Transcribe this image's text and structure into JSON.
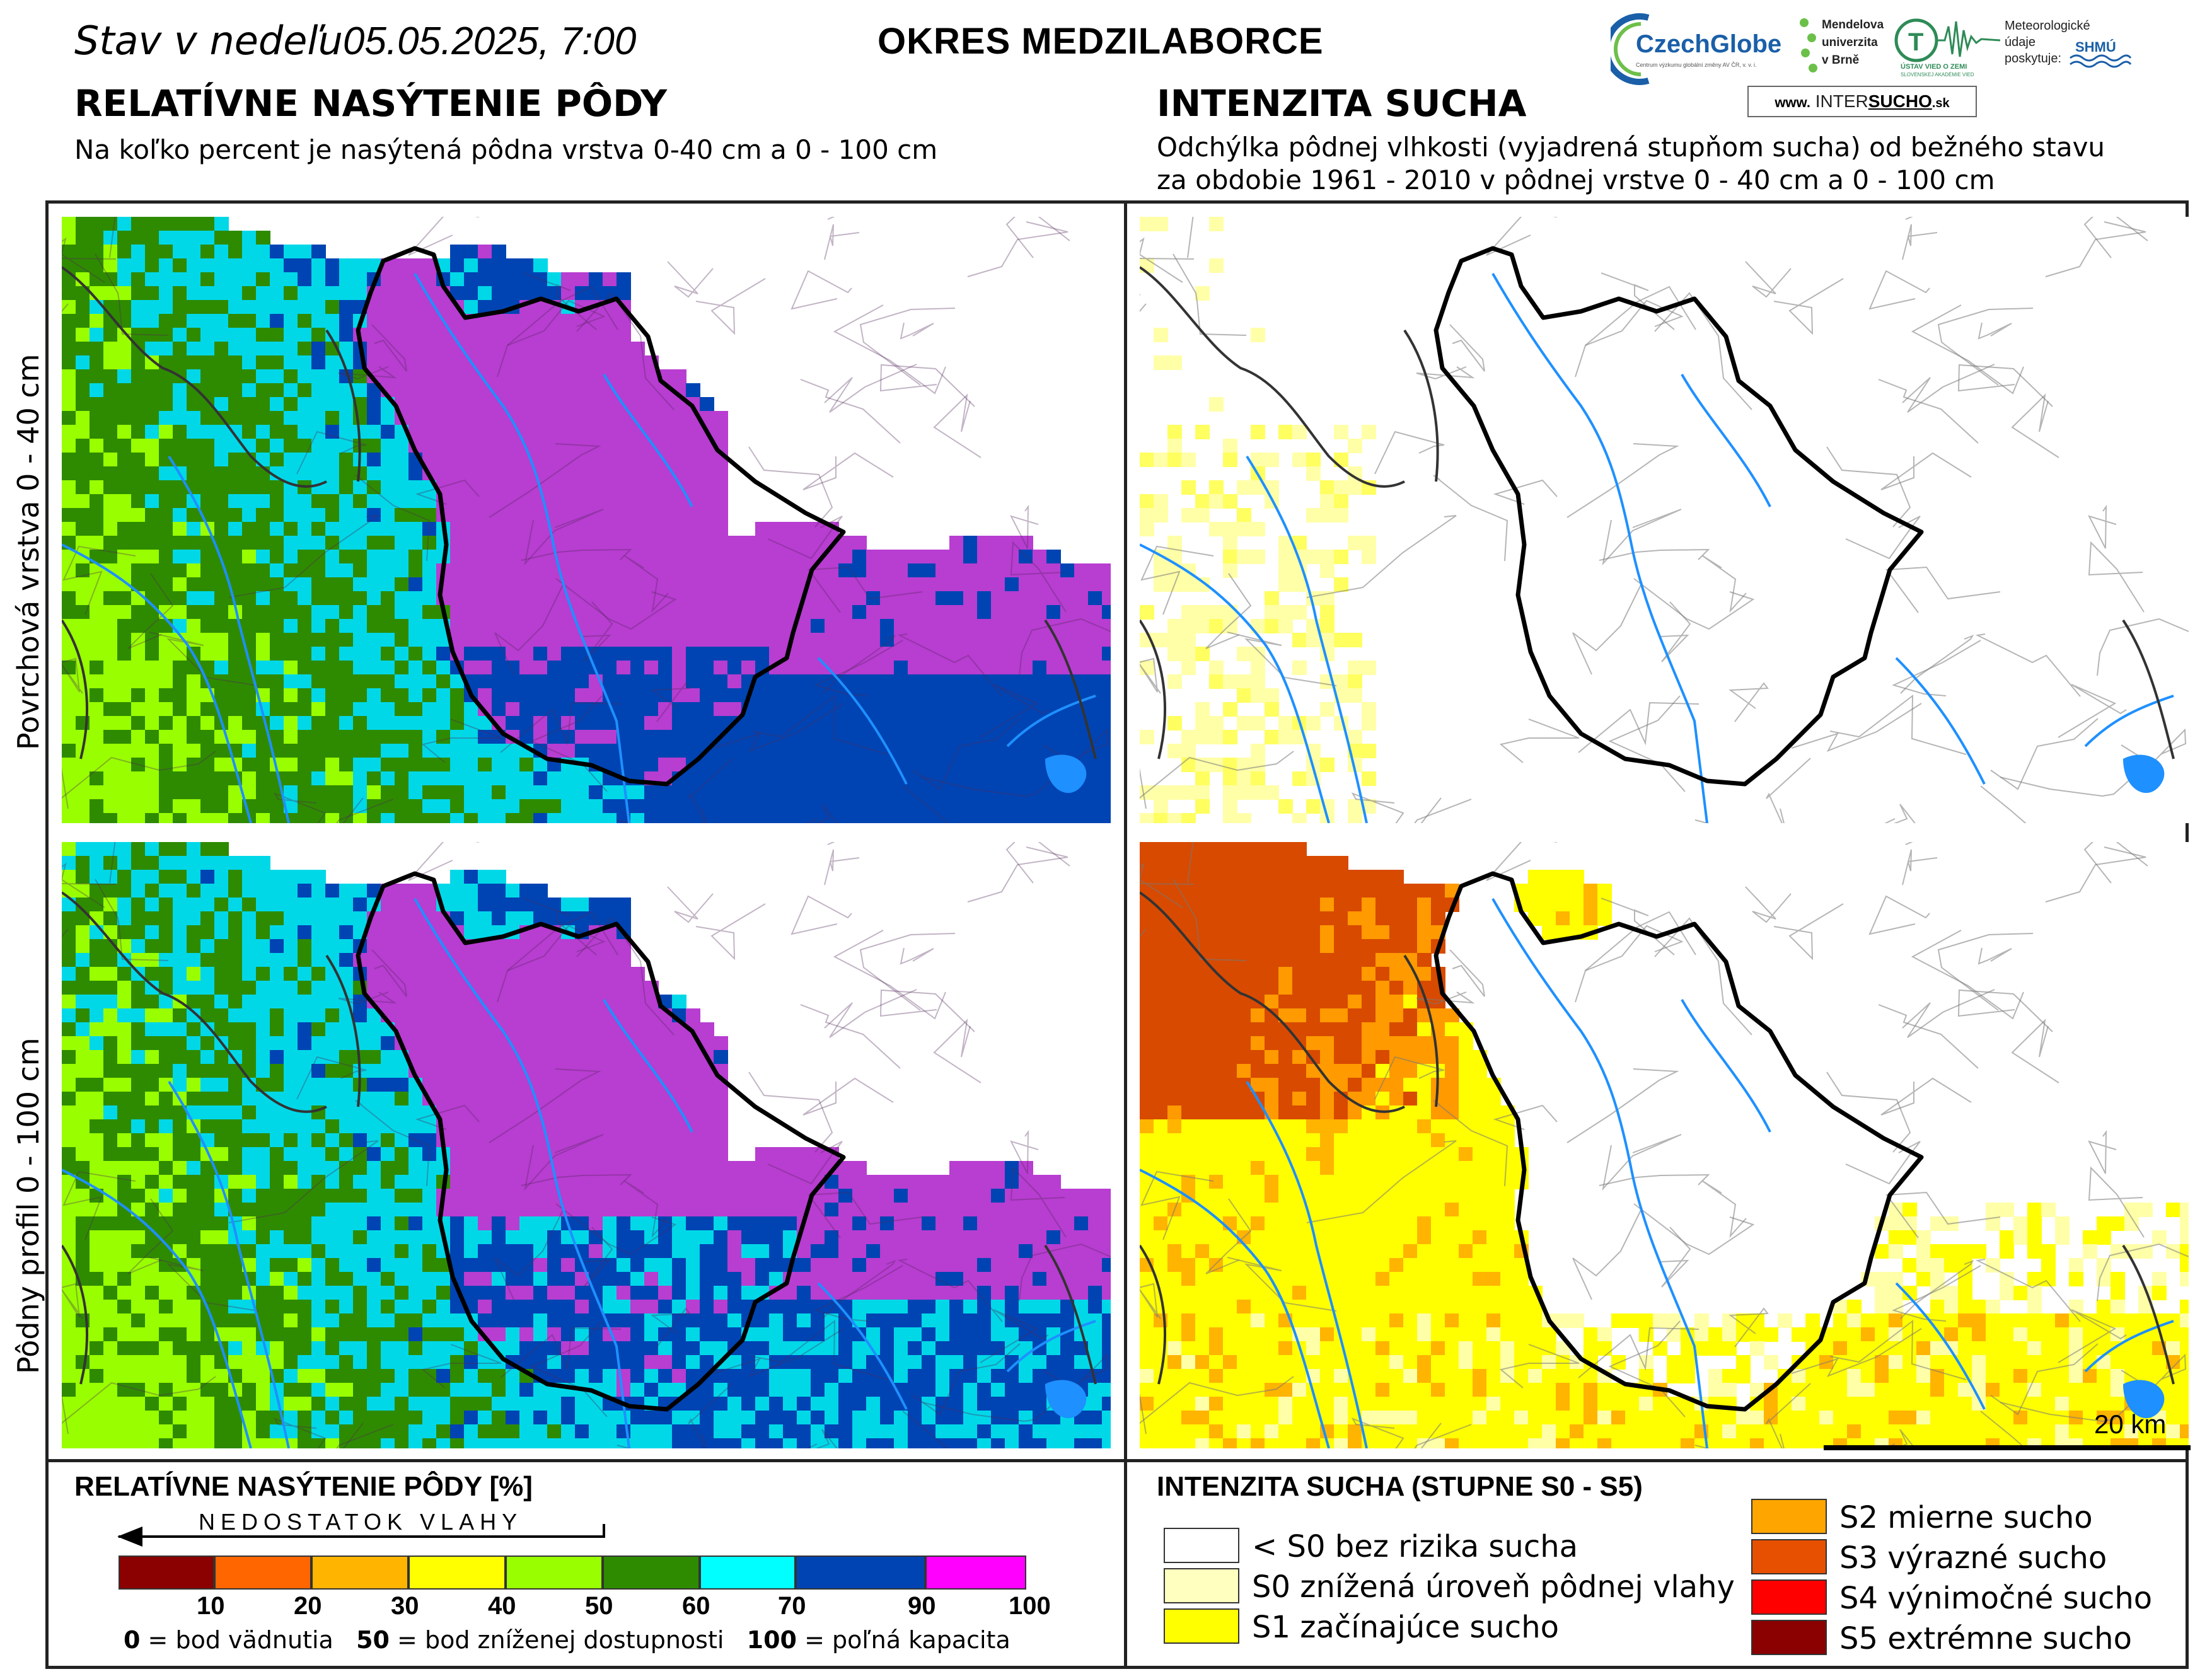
{
  "header": {
    "status_prefix": "Stav v nedeľu",
    "status_date": "05.05.2025, 7:00",
    "district": "OKRES  MEDZILABORCE"
  },
  "left_section": {
    "title": "RELATÍVNE NASÝTENIE PÔDY",
    "subtitle": "Na koľko percent je nasýtená pôdna vrstva 0-40 cm a 0 - 100 cm"
  },
  "right_section": {
    "title": "INTENZITA SUCHA",
    "subtitle_line1": "Odchýlka pôdnej vlhkosti (vyjadrená stupňom sucha) od bežného stavu",
    "subtitle_line2": "za obdobie 1961 - 2010 v pôdnej vrstve 0 - 40 cm a 0 - 100 cm"
  },
  "row_labels": {
    "top": "Povrchová vrstva 0 - 40 cm",
    "bottom": "Pôdny profil 0 - 100 cm"
  },
  "scale_bar": {
    "label": "20 km"
  },
  "logos": {
    "czechglobe": "CzechGlobe",
    "czechglobe_sub": "Centrum výzkumu globální změny AV ČR, v. v. i.",
    "mendel_line1": "Mendelova",
    "mendel_line2": "univerzita",
    "mendel_line3": "v Brně",
    "uvz": "ÚSTAV VIED O ZEMI",
    "uvz_sub": "SLOVENSKEJ AKADÉMIE VIED",
    "meteo_line1": "Meteorologické",
    "meteo_line2": "údaje",
    "meteo_line3": "poskytuje:",
    "shmu": "SHMÚ",
    "intersucho_prefix": "www.",
    "intersucho_a": "INTER",
    "intersucho_b": "SUCHO",
    "intersucho_suffix": ".sk"
  },
  "legend_saturation": {
    "title": "RELATÍVNE NASÝTENIE PÔDY [%]",
    "arrow_label": "NEDOSTATOK VLAHY",
    "ticks": [
      "10",
      "20",
      "30",
      "40",
      "50",
      "60",
      "70",
      "90",
      "100"
    ],
    "colors": [
      "#8b0000",
      "#ff6600",
      "#ffb400",
      "#ffff00",
      "#99ff00",
      "#2e8b00",
      "#00ffff",
      "#0044b3",
      "#ff00ff"
    ],
    "note_0_num": "0",
    "note_0_text": " = bod vädnutia",
    "note_50_num": "50",
    "note_50_text": " = bod zníženej dostupnosti",
    "note_100_num": "100",
    "note_100_text": " = poľná kapacita"
  },
  "legend_drought": {
    "title": "INTENZITA SUCHA (STUPNE S0 - S5)",
    "items": [
      {
        "label": "< S0 bez rizika sucha",
        "color": "#ffffff"
      },
      {
        "label": "S0 znížená úroveň pôdnej vlahy",
        "color": "#ffffc0"
      },
      {
        "label": "S1 začínajúce sucho",
        "color": "#ffff00"
      },
      {
        "label": "S2 mierne sucho",
        "color": "#ffa500"
      },
      {
        "label": "S3 výrazné sucho",
        "color": "#e65000"
      },
      {
        "label": "S4 výnimočné sucho",
        "color": "#ff0000"
      },
      {
        "label": "S5 extrémne sucho",
        "color": "#8b0000"
      }
    ]
  }
}
